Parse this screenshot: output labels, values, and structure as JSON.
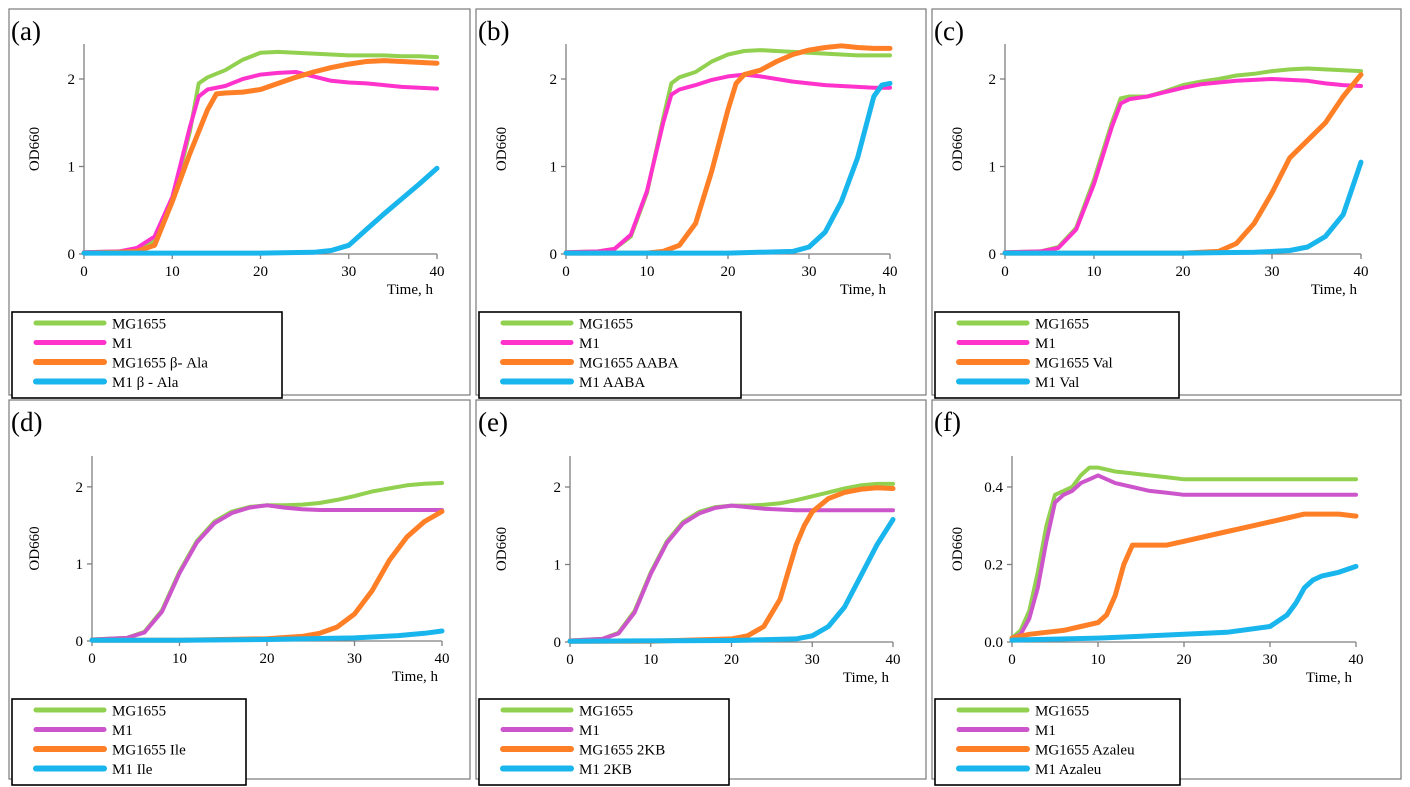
{
  "chart_data": [
    {
      "type": "line",
      "panel_label": "(a)",
      "ylabel": "OD660",
      "xlabel": "Time, h",
      "xlim": [
        0,
        40
      ],
      "ylim": [
        0,
        2.4
      ],
      "xticks": [
        "0",
        "10",
        "20",
        "30",
        "40"
      ],
      "yticks": [
        0,
        1,
        2
      ],
      "ytick_labels": [
        "0",
        "1",
        "2"
      ],
      "series": [
        {
          "name": "MG1655",
          "color": "#92d050",
          "x": [
            0,
            4,
            6,
            8,
            10,
            12,
            13,
            14,
            16,
            18,
            20,
            22,
            24,
            26,
            28,
            30,
            32,
            34,
            36,
            38,
            40
          ],
          "y": [
            0.02,
            0.03,
            0.06,
            0.15,
            0.6,
            1.4,
            1.95,
            2.02,
            2.1,
            2.22,
            2.3,
            2.31,
            2.3,
            2.29,
            2.28,
            2.27,
            2.27,
            2.27,
            2.26,
            2.26,
            2.25
          ]
        },
        {
          "name": "M1",
          "color": "#ff33cc",
          "x": [
            0,
            4,
            6,
            8,
            10,
            12,
            13,
            14,
            16,
            18,
            20,
            22,
            24,
            26,
            28,
            30,
            32,
            34,
            36,
            38,
            40
          ],
          "y": [
            0.02,
            0.03,
            0.07,
            0.2,
            0.65,
            1.45,
            1.8,
            1.88,
            1.92,
            2.0,
            2.05,
            2.07,
            2.08,
            2.03,
            1.98,
            1.96,
            1.95,
            1.93,
            1.91,
            1.9,
            1.89
          ]
        },
        {
          "name": "MG1655  β- Ala",
          "color": "#ff7f27",
          "x": [
            0,
            4,
            6,
            8,
            10,
            12,
            14,
            15,
            16,
            18,
            20,
            22,
            24,
            26,
            28,
            30,
            32,
            34,
            36,
            38,
            40
          ],
          "y": [
            0.01,
            0.02,
            0.03,
            0.1,
            0.6,
            1.15,
            1.65,
            1.83,
            1.84,
            1.85,
            1.88,
            1.95,
            2.02,
            2.08,
            2.13,
            2.17,
            2.2,
            2.21,
            2.2,
            2.19,
            2.18
          ]
        },
        {
          "name": "M1   β - Ala",
          "color": "#19b5ed",
          "x": [
            0,
            10,
            20,
            26,
            28,
            30,
            32,
            34,
            36,
            38,
            40
          ],
          "y": [
            0.01,
            0.01,
            0.01,
            0.02,
            0.04,
            0.1,
            0.28,
            0.46,
            0.63,
            0.8,
            0.98
          ]
        }
      ]
    },
    {
      "type": "line",
      "panel_label": "(b)",
      "ylabel": "OD660",
      "xlabel": "Time, h",
      "xlim": [
        0,
        40
      ],
      "ylim": [
        0,
        2.4
      ],
      "xticks": [
        "0",
        "10",
        "20",
        "30",
        "40"
      ],
      "yticks": [
        0,
        1,
        2
      ],
      "ytick_labels": [
        "0",
        "1",
        "2"
      ],
      "series": [
        {
          "name": "MG1655",
          "color": "#92d050",
          "x": [
            0,
            4,
            6,
            8,
            10,
            12,
            13,
            14,
            16,
            18,
            20,
            22,
            24,
            26,
            28,
            30,
            32,
            34,
            36,
            38,
            40
          ],
          "y": [
            0.02,
            0.03,
            0.06,
            0.2,
            0.7,
            1.55,
            1.95,
            2.02,
            2.08,
            2.2,
            2.28,
            2.32,
            2.33,
            2.32,
            2.31,
            2.3,
            2.29,
            2.28,
            2.27,
            2.27,
            2.27
          ]
        },
        {
          "name": "M1",
          "color": "#ff33cc",
          "x": [
            0,
            4,
            6,
            8,
            10,
            12,
            13,
            14,
            16,
            18,
            20,
            22,
            24,
            26,
            28,
            30,
            32,
            34,
            36,
            38,
            40
          ],
          "y": [
            0.02,
            0.03,
            0.06,
            0.22,
            0.72,
            1.5,
            1.82,
            1.88,
            1.93,
            1.99,
            2.03,
            2.05,
            2.03,
            2.0,
            1.97,
            1.95,
            1.93,
            1.92,
            1.91,
            1.9,
            1.9
          ]
        },
        {
          "name": "MG1655  AABA",
          "color": "#ff7f27",
          "x": [
            0,
            10,
            12,
            14,
            16,
            18,
            20,
            21,
            22,
            24,
            26,
            28,
            30,
            32,
            34,
            36,
            38,
            40
          ],
          "y": [
            0.01,
            0.01,
            0.03,
            0.1,
            0.35,
            0.95,
            1.65,
            1.95,
            2.05,
            2.1,
            2.2,
            2.28,
            2.33,
            2.36,
            2.38,
            2.36,
            2.35,
            2.35
          ]
        },
        {
          "name": "M1   AABA",
          "color": "#19b5ed",
          "x": [
            0,
            20,
            28,
            30,
            32,
            34,
            36,
            37,
            38,
            39,
            40
          ],
          "y": [
            0.01,
            0.01,
            0.03,
            0.08,
            0.25,
            0.6,
            1.1,
            1.45,
            1.8,
            1.93,
            1.95
          ]
        }
      ]
    },
    {
      "type": "line",
      "panel_label": "(c)",
      "ylabel": "OD660",
      "xlabel": "Time, h",
      "xlim": [
        0,
        40
      ],
      "ylim": [
        0,
        2.4
      ],
      "xticks": [
        "0",
        "10",
        "20",
        "30",
        "40"
      ],
      "yticks": [
        0,
        1,
        2
      ],
      "ytick_labels": [
        "0",
        "1",
        "2"
      ],
      "series": [
        {
          "name": "MG1655",
          "color": "#92d050",
          "x": [
            0,
            4,
            6,
            8,
            10,
            12,
            13,
            14,
            16,
            18,
            20,
            22,
            24,
            26,
            28,
            30,
            32,
            34,
            36,
            38,
            40
          ],
          "y": [
            0.02,
            0.03,
            0.08,
            0.3,
            0.85,
            1.5,
            1.78,
            1.8,
            1.8,
            1.86,
            1.93,
            1.97,
            2.0,
            2.04,
            2.06,
            2.09,
            2.11,
            2.12,
            2.11,
            2.1,
            2.09
          ]
        },
        {
          "name": "M1",
          "color": "#ff33cc",
          "x": [
            0,
            4,
            6,
            8,
            10,
            12,
            13,
            14,
            16,
            18,
            20,
            22,
            24,
            26,
            28,
            30,
            32,
            34,
            36,
            38,
            40
          ],
          "y": [
            0.02,
            0.03,
            0.07,
            0.28,
            0.8,
            1.45,
            1.72,
            1.77,
            1.8,
            1.85,
            1.9,
            1.94,
            1.96,
            1.98,
            1.99,
            2.0,
            1.99,
            1.98,
            1.95,
            1.93,
            1.92
          ]
        },
        {
          "name": "MG1655 Val",
          "color": "#ff7f27",
          "x": [
            0,
            20,
            24,
            26,
            28,
            30,
            32,
            34,
            36,
            38,
            40
          ],
          "y": [
            0.01,
            0.01,
            0.03,
            0.12,
            0.35,
            0.7,
            1.1,
            1.3,
            1.5,
            1.8,
            2.05
          ]
        },
        {
          "name": "M1  Val",
          "color": "#19b5ed",
          "x": [
            0,
            20,
            28,
            32,
            34,
            36,
            38,
            39,
            40
          ],
          "y": [
            0.01,
            0.01,
            0.02,
            0.04,
            0.08,
            0.2,
            0.45,
            0.75,
            1.05
          ]
        }
      ]
    },
    {
      "type": "line",
      "panel_label": "(d)",
      "ylabel": "OD660",
      "xlabel": "Time, h",
      "xlim": [
        0,
        40
      ],
      "ylim": [
        0,
        2.4
      ],
      "xticks": [
        "0",
        "10",
        "20",
        "30",
        "40"
      ],
      "yticks": [
        0,
        1,
        2
      ],
      "ytick_labels": [
        "0",
        "1",
        "2"
      ],
      "series": [
        {
          "name": "MG1655",
          "color": "#92d050",
          "x": [
            0,
            4,
            6,
            8,
            10,
            12,
            14,
            16,
            18,
            20,
            22,
            24,
            26,
            28,
            30,
            32,
            34,
            36,
            38,
            40
          ],
          "y": [
            0.02,
            0.04,
            0.12,
            0.4,
            0.9,
            1.3,
            1.55,
            1.68,
            1.74,
            1.76,
            1.76,
            1.77,
            1.79,
            1.83,
            1.88,
            1.94,
            1.98,
            2.02,
            2.04,
            2.05
          ]
        },
        {
          "name": "M1",
          "color": "#cc55cc",
          "x": [
            0,
            4,
            6,
            8,
            10,
            12,
            14,
            16,
            18,
            20,
            22,
            24,
            26,
            28,
            30,
            32,
            34,
            36,
            38,
            40
          ],
          "y": [
            0.02,
            0.04,
            0.11,
            0.38,
            0.88,
            1.28,
            1.53,
            1.66,
            1.73,
            1.76,
            1.73,
            1.71,
            1.7,
            1.7,
            1.7,
            1.7,
            1.7,
            1.7,
            1.7,
            1.7
          ]
        },
        {
          "name": "MG1655 Ile",
          "color": "#ff7f27",
          "x": [
            0,
            10,
            20,
            24,
            26,
            28,
            30,
            32,
            34,
            36,
            38,
            40
          ],
          "y": [
            0.01,
            0.01,
            0.03,
            0.06,
            0.1,
            0.18,
            0.35,
            0.65,
            1.05,
            1.35,
            1.55,
            1.68
          ]
        },
        {
          "name": "M1  Ile",
          "color": "#19b5ed",
          "x": [
            0,
            10,
            20,
            30,
            35,
            38,
            40
          ],
          "y": [
            0.01,
            0.01,
            0.02,
            0.04,
            0.07,
            0.1,
            0.13
          ]
        }
      ]
    },
    {
      "type": "line",
      "panel_label": "(e)",
      "ylabel": "OD660",
      "xlabel": "Time, h",
      "xlim": [
        0,
        40
      ],
      "ylim": [
        0,
        2.4
      ],
      "xticks": [
        "0",
        "10",
        "20",
        "30",
        "40"
      ],
      "yticks": [
        0,
        1,
        2
      ],
      "ytick_labels": [
        "0",
        "1",
        "2"
      ],
      "series": [
        {
          "name": "MG1655",
          "color": "#92d050",
          "x": [
            0,
            4,
            6,
            8,
            10,
            12,
            14,
            16,
            18,
            20,
            22,
            24,
            26,
            28,
            30,
            32,
            34,
            36,
            38,
            40
          ],
          "y": [
            0.02,
            0.04,
            0.12,
            0.4,
            0.9,
            1.3,
            1.55,
            1.68,
            1.74,
            1.76,
            1.76,
            1.77,
            1.79,
            1.83,
            1.88,
            1.93,
            1.98,
            2.02,
            2.04,
            2.04
          ]
        },
        {
          "name": "M1",
          "color": "#cc55cc",
          "x": [
            0,
            4,
            6,
            8,
            10,
            12,
            14,
            16,
            18,
            20,
            22,
            24,
            26,
            28,
            30,
            32,
            34,
            36,
            38,
            40
          ],
          "y": [
            0.02,
            0.04,
            0.11,
            0.38,
            0.88,
            1.28,
            1.53,
            1.66,
            1.73,
            1.76,
            1.74,
            1.72,
            1.71,
            1.7,
            1.7,
            1.7,
            1.7,
            1.7,
            1.7,
            1.7
          ]
        },
        {
          "name": "MG1655 2KB",
          "color": "#ff7f27",
          "x": [
            0,
            10,
            20,
            22,
            24,
            26,
            27,
            28,
            29,
            30,
            32,
            34,
            36,
            38,
            40
          ],
          "y": [
            0.01,
            0.01,
            0.04,
            0.08,
            0.2,
            0.55,
            0.9,
            1.25,
            1.5,
            1.68,
            1.85,
            1.93,
            1.97,
            1.99,
            1.98
          ]
        },
        {
          "name": "M1   2KB",
          "color": "#19b5ed",
          "x": [
            0,
            20,
            28,
            30,
            32,
            34,
            36,
            38,
            40
          ],
          "y": [
            0.01,
            0.02,
            0.04,
            0.08,
            0.2,
            0.45,
            0.85,
            1.25,
            1.58
          ]
        }
      ]
    },
    {
      "type": "line",
      "panel_label": "(f)",
      "ylabel": "OD660",
      "xlabel": "Time, h",
      "xlim": [
        0,
        40
      ],
      "ylim": [
        0,
        0.48
      ],
      "xticks": [
        "0",
        "10",
        "20",
        "30",
        "40"
      ],
      "yticks": [
        0,
        0.2,
        0.4
      ],
      "ytick_labels": [
        "0.0",
        "0.2",
        "0.4"
      ],
      "series": [
        {
          "name": "MG1655",
          "color": "#92d050",
          "x": [
            0,
            1,
            2,
            3,
            4,
            5,
            6,
            7,
            8,
            9,
            10,
            12,
            14,
            16,
            18,
            20,
            24,
            28,
            32,
            36,
            40
          ],
          "y": [
            0.01,
            0.03,
            0.08,
            0.18,
            0.3,
            0.38,
            0.39,
            0.4,
            0.43,
            0.45,
            0.45,
            0.44,
            0.435,
            0.43,
            0.425,
            0.42,
            0.42,
            0.42,
            0.42,
            0.42,
            0.42
          ]
        },
        {
          "name": "M1",
          "color": "#cc55cc",
          "x": [
            0,
            1,
            2,
            3,
            4,
            5,
            6,
            7,
            8,
            9,
            10,
            12,
            14,
            16,
            18,
            20,
            24,
            28,
            32,
            36,
            40
          ],
          "y": [
            0.01,
            0.02,
            0.06,
            0.14,
            0.26,
            0.36,
            0.38,
            0.39,
            0.41,
            0.42,
            0.43,
            0.41,
            0.4,
            0.39,
            0.385,
            0.38,
            0.38,
            0.38,
            0.38,
            0.38,
            0.38
          ]
        },
        {
          "name": "MG1655 Azaleu",
          "color": "#ff7f27",
          "x": [
            0,
            2,
            4,
            6,
            8,
            10,
            11,
            12,
            13,
            14,
            15,
            18,
            20,
            24,
            28,
            32,
            34,
            36,
            38,
            40
          ],
          "y": [
            0.01,
            0.02,
            0.025,
            0.03,
            0.04,
            0.05,
            0.07,
            0.12,
            0.2,
            0.25,
            0.25,
            0.25,
            0.26,
            0.28,
            0.3,
            0.32,
            0.33,
            0.33,
            0.33,
            0.325
          ]
        },
        {
          "name": "M1   Azaleu",
          "color": "#19b5ed",
          "x": [
            0,
            10,
            20,
            25,
            30,
            32,
            33,
            34,
            35,
            36,
            38,
            40
          ],
          "y": [
            0.005,
            0.01,
            0.02,
            0.025,
            0.04,
            0.07,
            0.1,
            0.14,
            0.16,
            0.17,
            0.18,
            0.195
          ]
        }
      ]
    }
  ]
}
